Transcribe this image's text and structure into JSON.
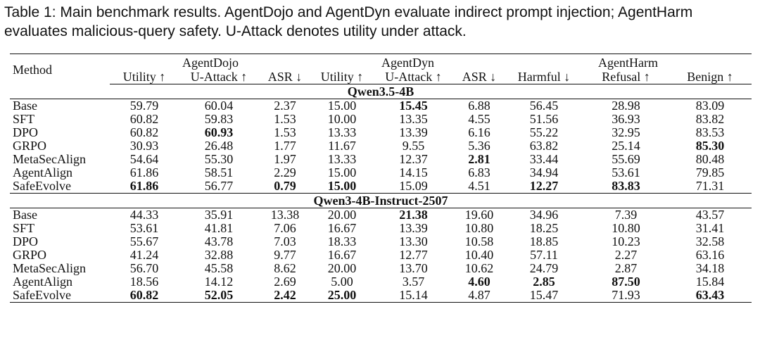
{
  "caption": {
    "label": "Table 1:",
    "text": "Main benchmark results. AgentDojo and AgentDyn evaluate indirect prompt injection; AgentHarm evaluates malicious-query safety. U-Attack denotes utility under attack."
  },
  "header": {
    "method": "Method",
    "groups": [
      "AgentDojo",
      "AgentDyn",
      "AgentHarm"
    ],
    "columns": [
      "Utility ↑",
      "U-Attack ↑",
      "ASR ↓",
      "Utility ↑",
      "U-Attack ↑",
      "ASR ↓",
      "Harmful ↓",
      "Refusal ↑",
      "Benign ↑"
    ]
  },
  "sections": [
    {
      "title": "Qwen3.5-4B",
      "rows": [
        {
          "method": "Base",
          "values": [
            "59.79",
            "60.04",
            "2.37",
            "15.00",
            "15.45",
            "6.88",
            "56.45",
            "28.98",
            "83.09"
          ],
          "bold": [
            4
          ]
        },
        {
          "method": "SFT",
          "values": [
            "60.82",
            "59.83",
            "1.53",
            "10.00",
            "13.35",
            "4.55",
            "51.56",
            "36.93",
            "83.82"
          ],
          "bold": []
        },
        {
          "method": "DPO",
          "values": [
            "60.82",
            "60.93",
            "1.53",
            "13.33",
            "13.39",
            "6.16",
            "55.22",
            "32.95",
            "83.53"
          ],
          "bold": [
            1
          ]
        },
        {
          "method": "GRPO",
          "values": [
            "30.93",
            "26.48",
            "1.77",
            "11.67",
            "9.55",
            "5.36",
            "63.82",
            "25.14",
            "85.30"
          ],
          "bold": [
            8
          ]
        },
        {
          "method": "MetaSecAlign",
          "values": [
            "54.64",
            "55.30",
            "1.97",
            "13.33",
            "12.37",
            "2.81",
            "33.44",
            "55.69",
            "80.48"
          ],
          "bold": [
            5
          ]
        },
        {
          "method": "AgentAlign",
          "values": [
            "61.86",
            "58.51",
            "2.29",
            "15.00",
            "14.15",
            "6.83",
            "34.94",
            "53.61",
            "79.85"
          ],
          "bold": []
        },
        {
          "method": "SafeEvolve",
          "values": [
            "61.86",
            "56.77",
            "0.79",
            "15.00",
            "15.09",
            "4.51",
            "12.27",
            "83.83",
            "71.31"
          ],
          "bold": [
            0,
            2,
            3,
            6,
            7
          ]
        }
      ]
    },
    {
      "title": "Qwen3-4B-Instruct-2507",
      "rows": [
        {
          "method": "Base",
          "values": [
            "44.33",
            "35.91",
            "13.38",
            "20.00",
            "21.38",
            "19.60",
            "34.96",
            "7.39",
            "43.57"
          ],
          "bold": [
            4
          ]
        },
        {
          "method": "SFT",
          "values": [
            "53.61",
            "41.81",
            "7.06",
            "16.67",
            "13.39",
            "10.80",
            "18.25",
            "10.80",
            "31.41"
          ],
          "bold": []
        },
        {
          "method": "DPO",
          "values": [
            "55.67",
            "43.78",
            "7.03",
            "18.33",
            "13.30",
            "10.58",
            "18.85",
            "10.23",
            "32.58"
          ],
          "bold": []
        },
        {
          "method": "GRPO",
          "values": [
            "41.24",
            "32.88",
            "9.77",
            "16.67",
            "12.77",
            "10.40",
            "57.11",
            "2.27",
            "63.16"
          ],
          "bold": []
        },
        {
          "method": "MetaSecAlign",
          "values": [
            "56.70",
            "45.58",
            "8.62",
            "20.00",
            "13.70",
            "10.62",
            "24.79",
            "2.87",
            "34.18"
          ],
          "bold": []
        },
        {
          "method": "AgentAlign",
          "values": [
            "18.56",
            "14.12",
            "2.69",
            "5.00",
            "3.57",
            "4.60",
            "2.85",
            "87.50",
            "15.84"
          ],
          "bold": [
            5,
            6,
            7
          ]
        },
        {
          "method": "SafeEvolve",
          "values": [
            "60.82",
            "52.05",
            "2.42",
            "25.00",
            "15.14",
            "4.87",
            "15.47",
            "71.93",
            "63.43"
          ],
          "bold": [
            0,
            1,
            2,
            3,
            8
          ]
        }
      ]
    }
  ]
}
